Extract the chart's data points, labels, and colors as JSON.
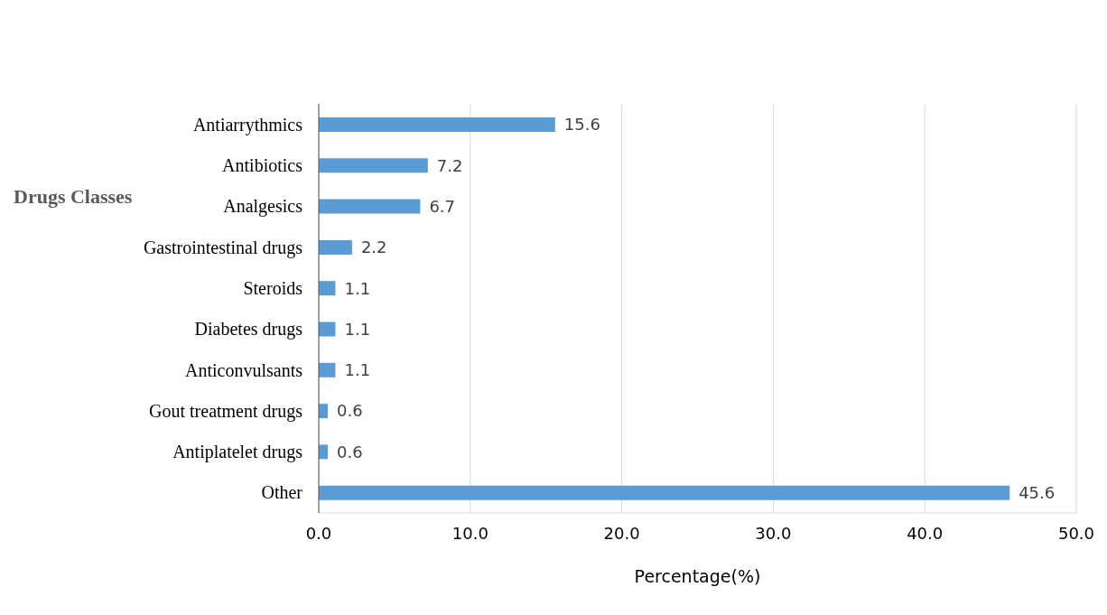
{
  "chart_data": {
    "type": "bar",
    "orientation": "horizontal",
    "ylabel": "Drugs Classes",
    "xlabel": "Percentage(%)",
    "categories": [
      "Antiarrythmics",
      "Antibiotics",
      "Analgesics",
      "Gastrointestinal drugs",
      "Steroids",
      "Diabetes drugs",
      "Anticonvulsants",
      "Gout treatment drugs",
      "Antiplatelet drugs",
      "Other"
    ],
    "values": [
      15.6,
      7.2,
      6.7,
      2.2,
      1.1,
      1.1,
      1.1,
      0.6,
      0.6,
      45.6
    ],
    "color": "#5b9bd5",
    "xlim": [
      0,
      50
    ],
    "xticks": [
      {
        "value": 0,
        "label": "0.0"
      },
      {
        "value": 10,
        "label": "10.0"
      },
      {
        "value": 20,
        "label": "20.0"
      },
      {
        "value": 30,
        "label": "30.0"
      },
      {
        "value": 40,
        "label": "40.0"
      },
      {
        "value": 50,
        "label": "50.0"
      }
    ],
    "grid": "x",
    "data_labels": true
  }
}
